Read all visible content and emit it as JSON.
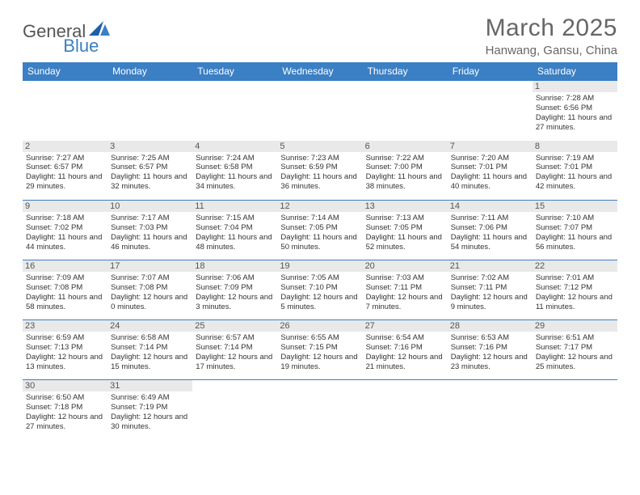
{
  "logo": {
    "part1": "General",
    "part2": "Blue",
    "shape_color": "#1f5fa8"
  },
  "header": {
    "title": "March 2025",
    "location": "Hanwang, Gansu, China",
    "title_color": "#666666",
    "location_color": "#666666"
  },
  "colors": {
    "header_bg": "#3b7fc4",
    "header_text": "#ffffff",
    "daynum_bg": "#e9e9e9",
    "row_divider": "#3b7fc4",
    "body_text": "#333333"
  },
  "weekdays": [
    "Sunday",
    "Monday",
    "Tuesday",
    "Wednesday",
    "Thursday",
    "Friday",
    "Saturday"
  ],
  "weeks": [
    [
      null,
      null,
      null,
      null,
      null,
      null,
      {
        "day": "1",
        "sunrise": "Sunrise: 7:28 AM",
        "sunset": "Sunset: 6:56 PM",
        "daylight": "Daylight: 11 hours and 27 minutes."
      }
    ],
    [
      {
        "day": "2",
        "sunrise": "Sunrise: 7:27 AM",
        "sunset": "Sunset: 6:57 PM",
        "daylight": "Daylight: 11 hours and 29 minutes."
      },
      {
        "day": "3",
        "sunrise": "Sunrise: 7:25 AM",
        "sunset": "Sunset: 6:57 PM",
        "daylight": "Daylight: 11 hours and 32 minutes."
      },
      {
        "day": "4",
        "sunrise": "Sunrise: 7:24 AM",
        "sunset": "Sunset: 6:58 PM",
        "daylight": "Daylight: 11 hours and 34 minutes."
      },
      {
        "day": "5",
        "sunrise": "Sunrise: 7:23 AM",
        "sunset": "Sunset: 6:59 PM",
        "daylight": "Daylight: 11 hours and 36 minutes."
      },
      {
        "day": "6",
        "sunrise": "Sunrise: 7:22 AM",
        "sunset": "Sunset: 7:00 PM",
        "daylight": "Daylight: 11 hours and 38 minutes."
      },
      {
        "day": "7",
        "sunrise": "Sunrise: 7:20 AM",
        "sunset": "Sunset: 7:01 PM",
        "daylight": "Daylight: 11 hours and 40 minutes."
      },
      {
        "day": "8",
        "sunrise": "Sunrise: 7:19 AM",
        "sunset": "Sunset: 7:01 PM",
        "daylight": "Daylight: 11 hours and 42 minutes."
      }
    ],
    [
      {
        "day": "9",
        "sunrise": "Sunrise: 7:18 AM",
        "sunset": "Sunset: 7:02 PM",
        "daylight": "Daylight: 11 hours and 44 minutes."
      },
      {
        "day": "10",
        "sunrise": "Sunrise: 7:17 AM",
        "sunset": "Sunset: 7:03 PM",
        "daylight": "Daylight: 11 hours and 46 minutes."
      },
      {
        "day": "11",
        "sunrise": "Sunrise: 7:15 AM",
        "sunset": "Sunset: 7:04 PM",
        "daylight": "Daylight: 11 hours and 48 minutes."
      },
      {
        "day": "12",
        "sunrise": "Sunrise: 7:14 AM",
        "sunset": "Sunset: 7:05 PM",
        "daylight": "Daylight: 11 hours and 50 minutes."
      },
      {
        "day": "13",
        "sunrise": "Sunrise: 7:13 AM",
        "sunset": "Sunset: 7:05 PM",
        "daylight": "Daylight: 11 hours and 52 minutes."
      },
      {
        "day": "14",
        "sunrise": "Sunrise: 7:11 AM",
        "sunset": "Sunset: 7:06 PM",
        "daylight": "Daylight: 11 hours and 54 minutes."
      },
      {
        "day": "15",
        "sunrise": "Sunrise: 7:10 AM",
        "sunset": "Sunset: 7:07 PM",
        "daylight": "Daylight: 11 hours and 56 minutes."
      }
    ],
    [
      {
        "day": "16",
        "sunrise": "Sunrise: 7:09 AM",
        "sunset": "Sunset: 7:08 PM",
        "daylight": "Daylight: 11 hours and 58 minutes."
      },
      {
        "day": "17",
        "sunrise": "Sunrise: 7:07 AM",
        "sunset": "Sunset: 7:08 PM",
        "daylight": "Daylight: 12 hours and 0 minutes."
      },
      {
        "day": "18",
        "sunrise": "Sunrise: 7:06 AM",
        "sunset": "Sunset: 7:09 PM",
        "daylight": "Daylight: 12 hours and 3 minutes."
      },
      {
        "day": "19",
        "sunrise": "Sunrise: 7:05 AM",
        "sunset": "Sunset: 7:10 PM",
        "daylight": "Daylight: 12 hours and 5 minutes."
      },
      {
        "day": "20",
        "sunrise": "Sunrise: 7:03 AM",
        "sunset": "Sunset: 7:11 PM",
        "daylight": "Daylight: 12 hours and 7 minutes."
      },
      {
        "day": "21",
        "sunrise": "Sunrise: 7:02 AM",
        "sunset": "Sunset: 7:11 PM",
        "daylight": "Daylight: 12 hours and 9 minutes."
      },
      {
        "day": "22",
        "sunrise": "Sunrise: 7:01 AM",
        "sunset": "Sunset: 7:12 PM",
        "daylight": "Daylight: 12 hours and 11 minutes."
      }
    ],
    [
      {
        "day": "23",
        "sunrise": "Sunrise: 6:59 AM",
        "sunset": "Sunset: 7:13 PM",
        "daylight": "Daylight: 12 hours and 13 minutes."
      },
      {
        "day": "24",
        "sunrise": "Sunrise: 6:58 AM",
        "sunset": "Sunset: 7:14 PM",
        "daylight": "Daylight: 12 hours and 15 minutes."
      },
      {
        "day": "25",
        "sunrise": "Sunrise: 6:57 AM",
        "sunset": "Sunset: 7:14 PM",
        "daylight": "Daylight: 12 hours and 17 minutes."
      },
      {
        "day": "26",
        "sunrise": "Sunrise: 6:55 AM",
        "sunset": "Sunset: 7:15 PM",
        "daylight": "Daylight: 12 hours and 19 minutes."
      },
      {
        "day": "27",
        "sunrise": "Sunrise: 6:54 AM",
        "sunset": "Sunset: 7:16 PM",
        "daylight": "Daylight: 12 hours and 21 minutes."
      },
      {
        "day": "28",
        "sunrise": "Sunrise: 6:53 AM",
        "sunset": "Sunset: 7:16 PM",
        "daylight": "Daylight: 12 hours and 23 minutes."
      },
      {
        "day": "29",
        "sunrise": "Sunrise: 6:51 AM",
        "sunset": "Sunset: 7:17 PM",
        "daylight": "Daylight: 12 hours and 25 minutes."
      }
    ],
    [
      {
        "day": "30",
        "sunrise": "Sunrise: 6:50 AM",
        "sunset": "Sunset: 7:18 PM",
        "daylight": "Daylight: 12 hours and 27 minutes."
      },
      {
        "day": "31",
        "sunrise": "Sunrise: 6:49 AM",
        "sunset": "Sunset: 7:19 PM",
        "daylight": "Daylight: 12 hours and 30 minutes."
      },
      null,
      null,
      null,
      null,
      null
    ]
  ]
}
